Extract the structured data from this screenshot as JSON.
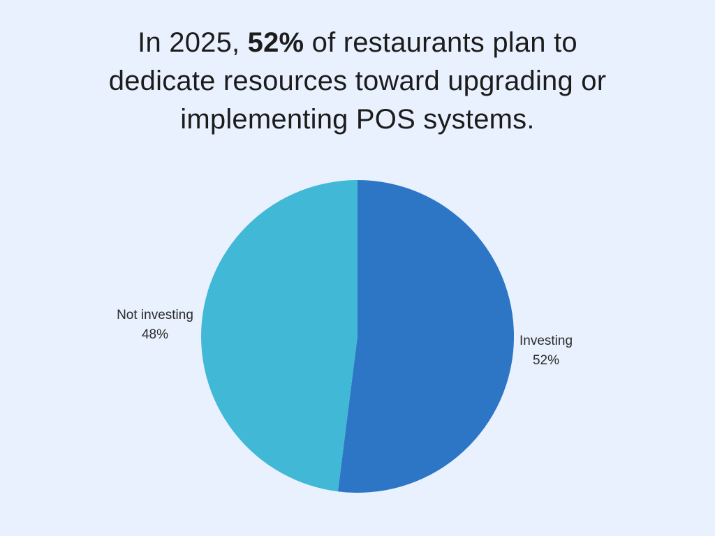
{
  "page": {
    "background_color": "#E8F1FD",
    "title_color": "#1C1C1C",
    "label_color": "#2B2B2B"
  },
  "title": {
    "line1_prefix": "In 2025, ",
    "line1_bold": "52%",
    "line1_suffix": " of restaurants plan to",
    "line2": "dedicate resources toward upgrading or",
    "line3": "implementing POS systems."
  },
  "chart_data": {
    "type": "pie",
    "title": "In 2025, 52% of restaurants plan to dedicate resources toward upgrading or implementing POS systems.",
    "labels": [
      "Investing",
      "Not investing"
    ],
    "values": [
      52,
      48
    ],
    "value_labels": [
      "52%",
      "48%"
    ],
    "colors": [
      "#2D76C5",
      "#40B8D6"
    ],
    "start_angle_deg": 0,
    "direction": "clockwise",
    "label_position": "outside",
    "legend_position": "none"
  }
}
